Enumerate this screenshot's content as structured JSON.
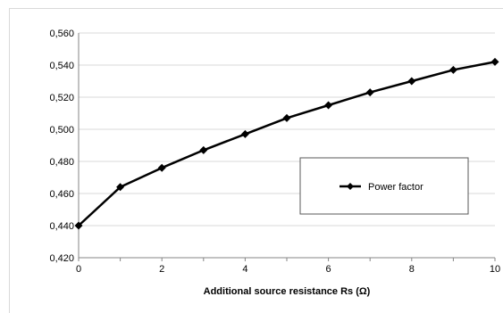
{
  "chart_data": {
    "type": "line",
    "title": "",
    "xlabel": "Additional source resistance Rs (Ω)",
    "ylabel": "",
    "x": [
      0,
      1,
      2,
      3,
      4,
      5,
      6,
      7,
      8,
      9,
      10
    ],
    "series": [
      {
        "name": "Power factor",
        "values": [
          0.44,
          0.464,
          0.476,
          0.487,
          0.497,
          0.507,
          0.515,
          0.523,
          0.53,
          0.537,
          0.542
        ],
        "color": "#000000",
        "marker": "diamond"
      }
    ],
    "xlim": [
      0,
      10
    ],
    "ylim": [
      0.42,
      0.56
    ],
    "x_ticks": [
      "0",
      "2",
      "4",
      "6",
      "8",
      "10"
    ],
    "y_ticks": [
      "0,420",
      "0,440",
      "0,460",
      "0,480",
      "0,500",
      "0,520",
      "0,540",
      "0,560"
    ],
    "grid": "horizontal",
    "legend_position": "right"
  }
}
